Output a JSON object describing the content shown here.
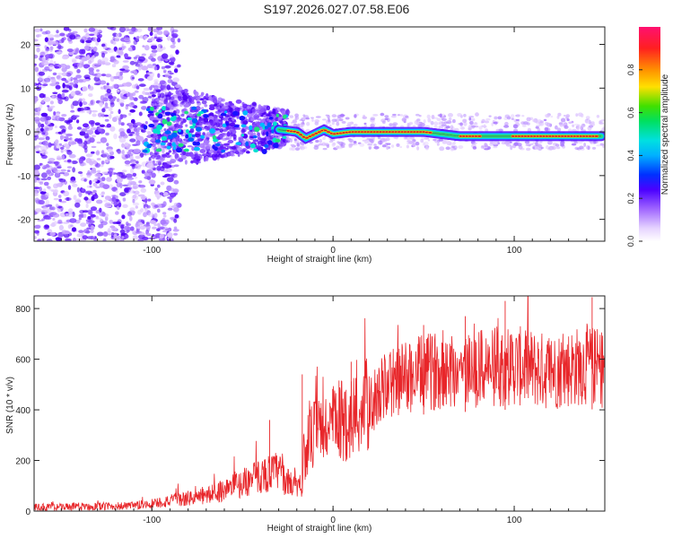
{
  "title": "S197.2026.027.07.58.E06",
  "chart_data": [
    {
      "type": "heatmap",
      "xlabel": "Height of straight line (km)",
      "ylabel": "Frequency (Hz)",
      "xlim": [
        -165,
        150
      ],
      "ylim": [
        -25,
        24
      ],
      "xticks": [
        -100,
        0,
        100
      ],
      "yticks": [
        -20,
        -10,
        0,
        10,
        20
      ],
      "colorbar": {
        "label": "Normalized spectral amplitude",
        "range": [
          0,
          1
        ],
        "ticks": [
          "0.0",
          "0.2",
          "0.4",
          "0.6",
          "0.8"
        ],
        "tick_values": [
          0,
          0.2,
          0.4,
          0.6,
          0.8
        ]
      },
      "ridge": {
        "description_units": "km vs Hz",
        "x": [
          -30,
          -20,
          -15,
          -10,
          -5,
          0,
          10,
          50,
          70,
          100,
          120,
          148
        ],
        "y": [
          0.5,
          0,
          -1.5,
          -0.5,
          0.5,
          -0.5,
          0,
          0,
          -1,
          -1,
          -1,
          -1
        ]
      }
    },
    {
      "type": "line",
      "xlabel": "Height of straight line (km)",
      "ylabel": "SNR (10 * v/v)",
      "xlim": [
        -165,
        150
      ],
      "ylim": [
        0,
        850
      ],
      "xticks": [
        -100,
        0,
        100
      ],
      "yticks": [
        0,
        200,
        400,
        600,
        800
      ],
      "series": [
        {
          "name": "SNR",
          "color": "#e8262a",
          "trend_x": [
            -165,
            -110,
            -90,
            -70,
            -50,
            -40,
            -30,
            -25,
            -20,
            -17,
            -16,
            -10,
            0,
            10,
            20,
            30,
            40,
            50,
            60,
            75,
            100,
            120,
            140,
            150
          ],
          "trend_y": [
            15,
            20,
            40,
            60,
            110,
            140,
            160,
            110,
            120,
            100,
            230,
            310,
            340,
            370,
            420,
            500,
            530,
            545,
            560,
            560,
            575,
            550,
            580,
            560
          ],
          "peak_x": [
            -35,
            -17,
            10,
            50,
            73,
            95,
            143
          ],
          "peak_y": [
            360,
            540,
            590,
            735,
            770,
            830,
            845
          ]
        }
      ]
    }
  ],
  "colors": {
    "line": "#e8262a",
    "text": "#222222"
  }
}
